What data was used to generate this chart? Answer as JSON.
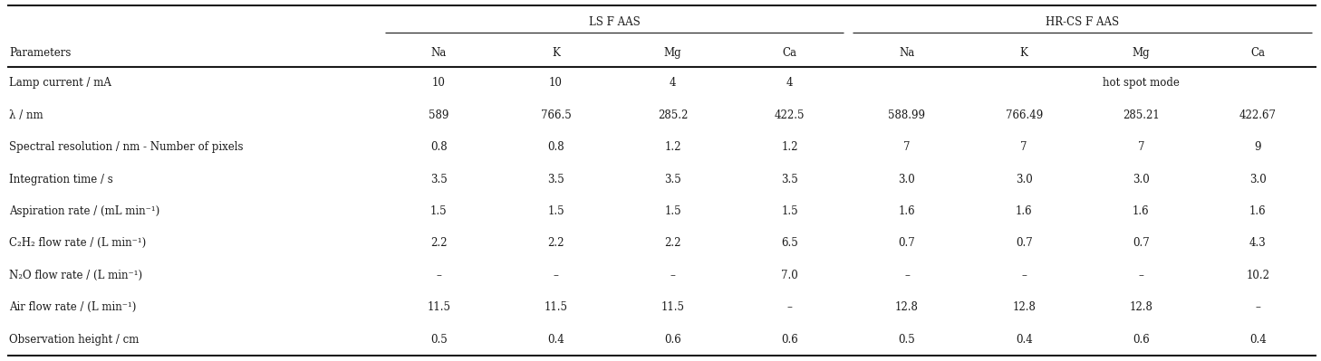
{
  "col_header_row1_labels": [
    "LS F AAS",
    "HR-CS F AAS"
  ],
  "col_header_row2": [
    "Parameters",
    "Na",
    "K",
    "Mg",
    "Ca",
    "Na",
    "K",
    "Mg",
    "Ca"
  ],
  "rows": [
    [
      "Lamp current / mA",
      "10",
      "10",
      "4",
      "4",
      "",
      "hot spot mode",
      "",
      ""
    ],
    [
      "λ / nm",
      "589",
      "766.5",
      "285.2",
      "422.5",
      "588.99",
      "766.49",
      "285.21",
      "422.67"
    ],
    [
      "Spectral resolution / nm - Number of pixels",
      "0.8",
      "0.8",
      "1.2",
      "1.2",
      "7",
      "7",
      "7",
      "9"
    ],
    [
      "Integration time / s",
      "3.5",
      "3.5",
      "3.5",
      "3.5",
      "3.0",
      "3.0",
      "3.0",
      "3.0"
    ],
    [
      "Aspiration rate / (mL min⁻¹)",
      "1.5",
      "1.5",
      "1.5",
      "1.5",
      "1.6",
      "1.6",
      "1.6",
      "1.6"
    ],
    [
      "C₂H₂ flow rate / (L min⁻¹)",
      "2.2",
      "2.2",
      "2.2",
      "6.5",
      "0.7",
      "0.7",
      "0.7",
      "4.3"
    ],
    [
      "N₂O flow rate / (L min⁻¹)",
      "–",
      "–",
      "–",
      "7.0",
      "–",
      "–",
      "–",
      "10.2"
    ],
    [
      "Air flow rate / (L min⁻¹)",
      "11.5",
      "11.5",
      "11.5",
      "–",
      "12.8",
      "12.8",
      "12.8",
      "–"
    ],
    [
      "Observation height / cm",
      "0.5",
      "0.4",
      "0.6",
      "0.6",
      "0.5",
      "0.4",
      "0.6",
      "0.4"
    ]
  ],
  "background_color": "#ffffff",
  "text_color": "#1a1a1a",
  "font_size": 8.5
}
